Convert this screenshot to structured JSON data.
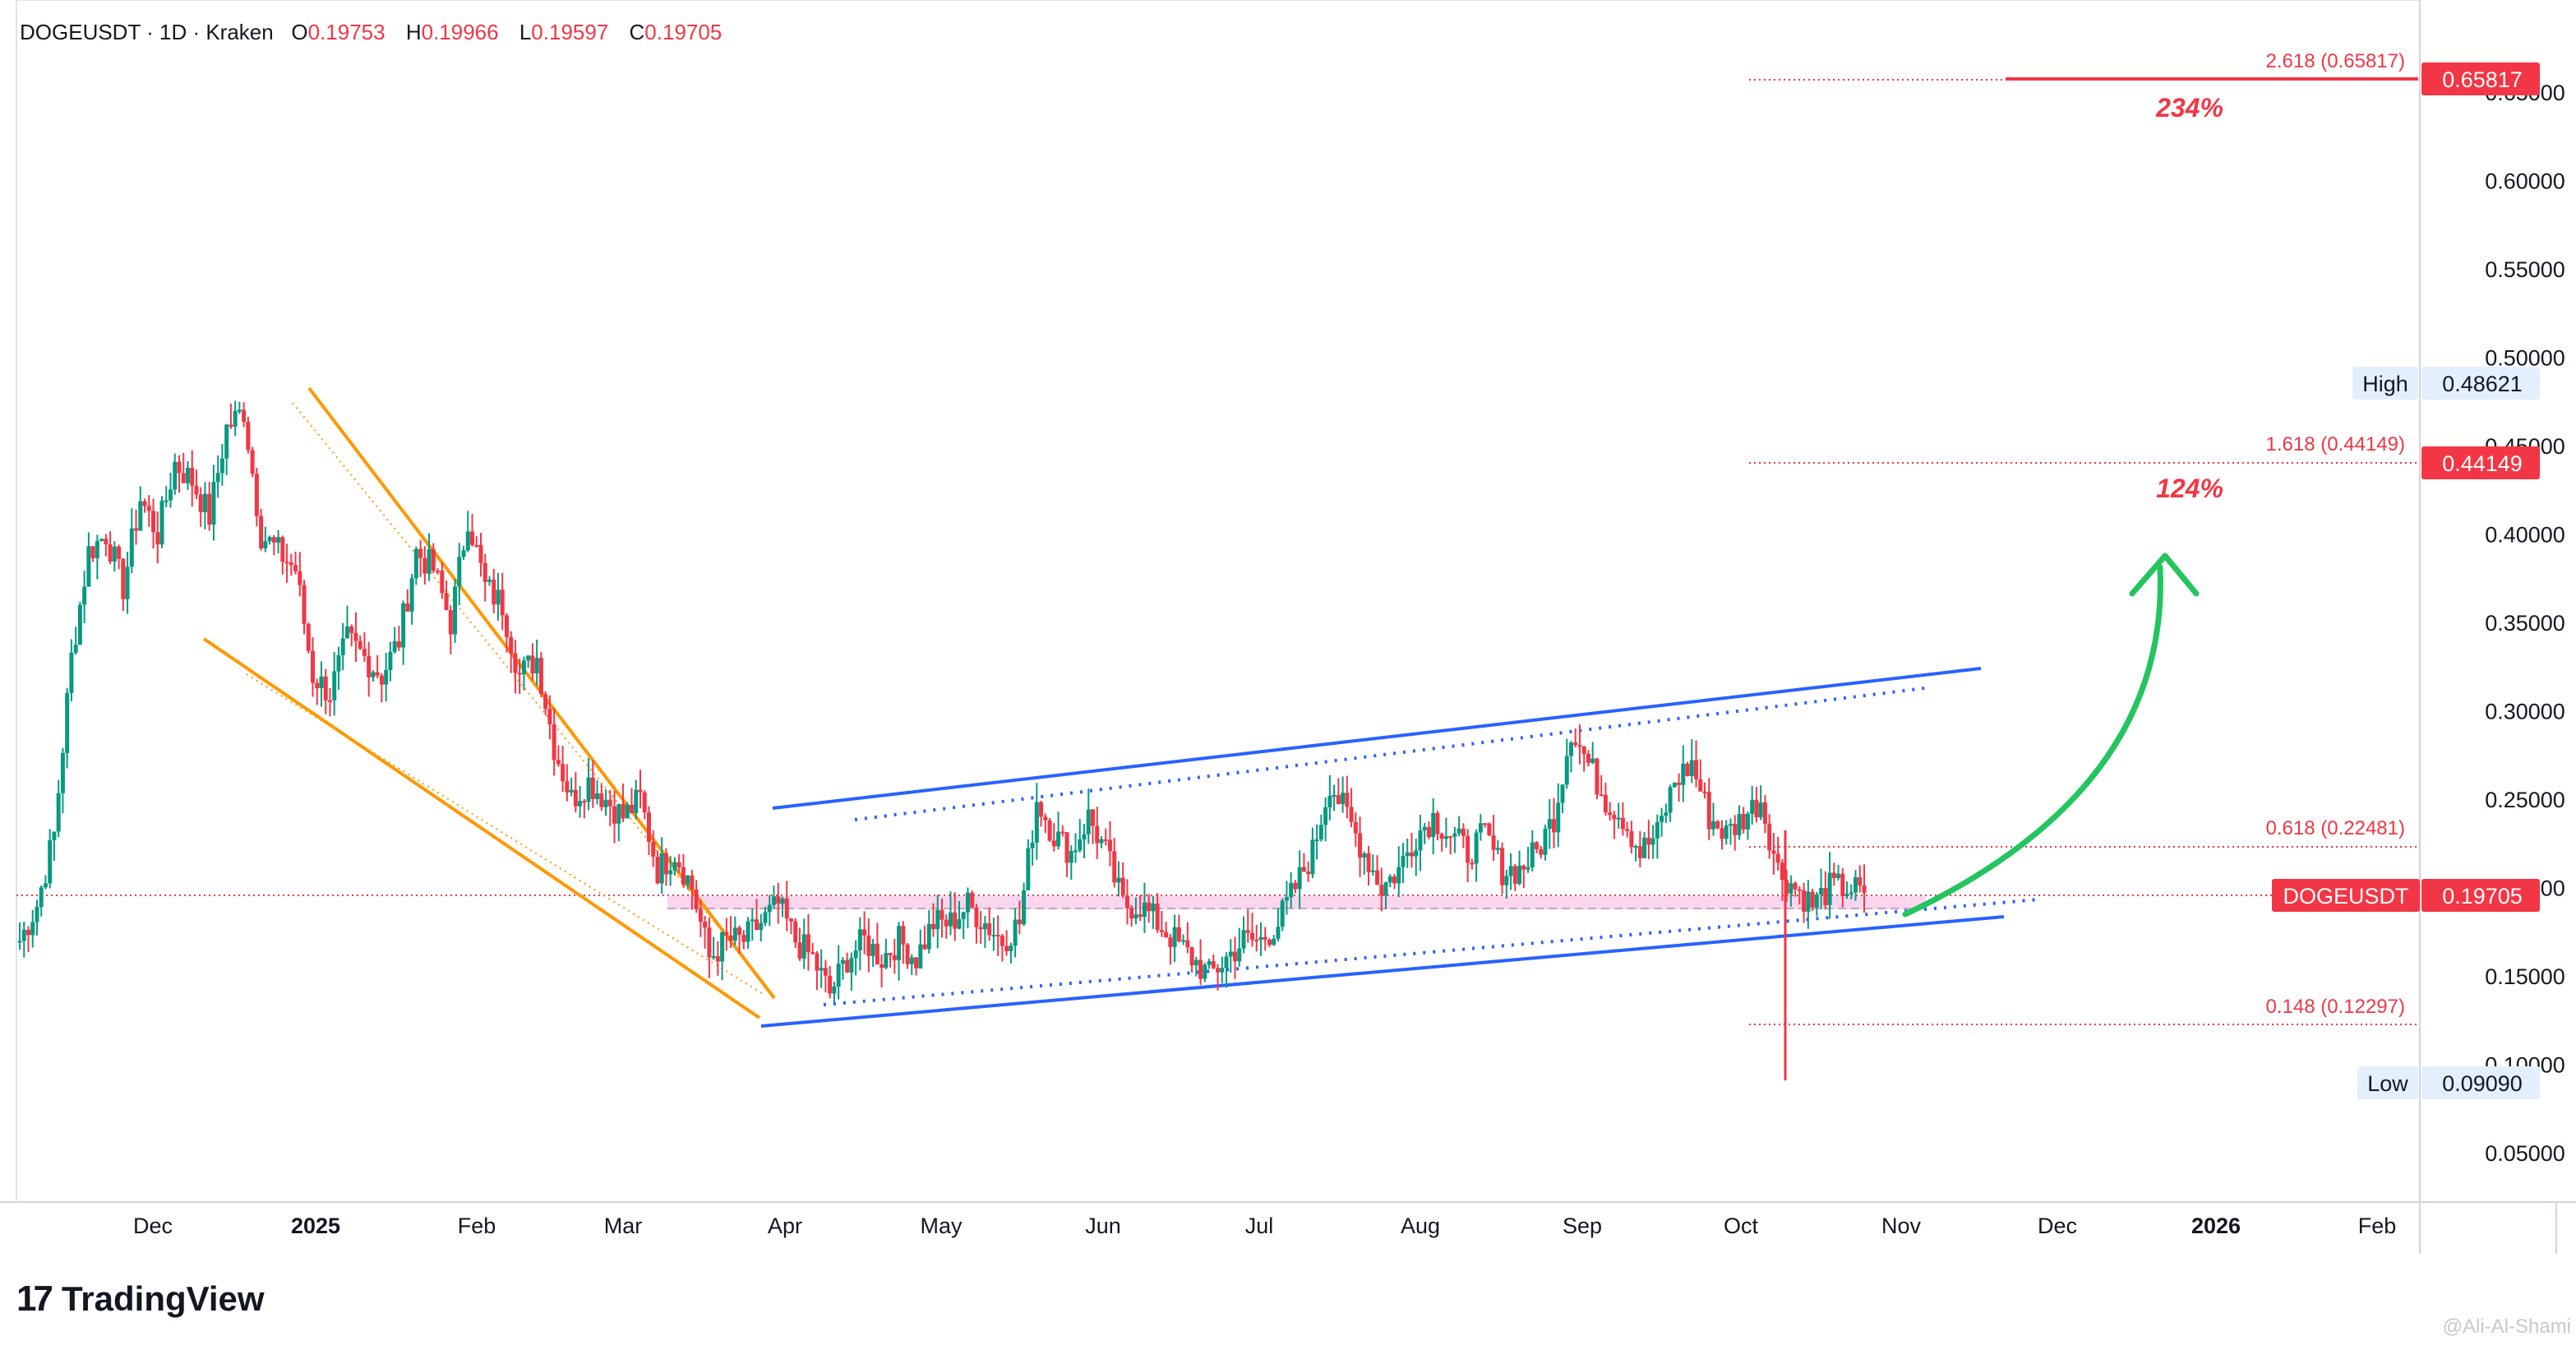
{
  "header": {
    "symbol": "DOGEUSDT · 1D · Kraken",
    "o_label": "O",
    "o_value": "0.19753",
    "h_label": "H",
    "h_value": "0.19966",
    "l_label": "L",
    "l_value": "0.19597",
    "c_label": "C",
    "c_value": "0.19705"
  },
  "footer": {
    "logo_mark": "17",
    "brand": "TradingView",
    "watermark": "@Ali-Al-Shami"
  },
  "colors": {
    "up": "#089981",
    "down": "#f23645",
    "channel": "#2962ff",
    "wedge": "#ff9800",
    "arrow": "#22c55e",
    "price_line": "#f23645",
    "zone": "#f8c8e8"
  },
  "chart_data": {
    "type": "line",
    "title": "DOGEUSDT · 1D · Kraken",
    "ylim": [
      0.0,
      0.7
    ],
    "price_scale_labels": [
      "0.05000",
      "0.10000",
      "0.15000",
      "0.20000",
      "0.25000",
      "0.30000",
      "0.35000",
      "0.40000",
      "0.45000",
      "0.50000",
      "0.55000",
      "0.60000",
      "0.65000"
    ],
    "time_labels": [
      {
        "label": "Dec",
        "bold": false
      },
      {
        "label": "2025",
        "bold": true
      },
      {
        "label": "Feb",
        "bold": false
      },
      {
        "label": "Mar",
        "bold": false
      },
      {
        "label": "Apr",
        "bold": false
      },
      {
        "label": "May",
        "bold": false
      },
      {
        "label": "Jun",
        "bold": false
      },
      {
        "label": "Jul",
        "bold": false
      },
      {
        "label": "Aug",
        "bold": false
      },
      {
        "label": "Sep",
        "bold": false
      },
      {
        "label": "Oct",
        "bold": false
      },
      {
        "label": "Nov",
        "bold": false
      },
      {
        "label": "Dec",
        "bold": false
      },
      {
        "label": "2026",
        "bold": true
      },
      {
        "label": "Feb",
        "bold": false
      }
    ],
    "series": [
      {
        "values": [
          0.17,
          0.19,
          0.23,
          0.33,
          0.39,
          0.4,
          0.37,
          0.42,
          0.4,
          0.44,
          0.43,
          0.41,
          0.46,
          0.47,
          0.4,
          0.39,
          0.38,
          0.32,
          0.31,
          0.34,
          0.33,
          0.32,
          0.34,
          0.39,
          0.38,
          0.35,
          0.41,
          0.37,
          0.36,
          0.32,
          0.33,
          0.28,
          0.25,
          0.26,
          0.25,
          0.24,
          0.25,
          0.21,
          0.22,
          0.2,
          0.16,
          0.17,
          0.17,
          0.18,
          0.19,
          0.17,
          0.16,
          0.14,
          0.16,
          0.17,
          0.16,
          0.17,
          0.16,
          0.18,
          0.18,
          0.19,
          0.18,
          0.17,
          0.18,
          0.25,
          0.23,
          0.22,
          0.24,
          0.22,
          0.19,
          0.19,
          0.18,
          0.17,
          0.16,
          0.15,
          0.16,
          0.17,
          0.17,
          0.18,
          0.2,
          0.22,
          0.26,
          0.24,
          0.22,
          0.2,
          0.21,
          0.23,
          0.24,
          0.23,
          0.22,
          0.23,
          0.21,
          0.21,
          0.22,
          0.24,
          0.29,
          0.27,
          0.25,
          0.24,
          0.22,
          0.23,
          0.26,
          0.27,
          0.24,
          0.23,
          0.24,
          0.25,
          0.21,
          0.2,
          0.19,
          0.2,
          0.2,
          0.197
        ]
      }
    ],
    "annotations": {
      "current_price": "0.19705",
      "current_label": "DOGEUSDT",
      "high_label": "High",
      "high_value": "0.48621",
      "low_label": "Low",
      "low_value": "0.09090",
      "fib_top_text": "2.618 (0.65817)",
      "fib_top_tag": "0.65817",
      "fib_top_pct": "234%",
      "fib_mid_text": "1.618 (0.44149)",
      "fib_mid_tag": "0.44149",
      "fib_mid_pct": "124%",
      "fib_618_text": "0.618 (0.22481)",
      "fib_148_text": "0.148 (0.12297)"
    }
  }
}
